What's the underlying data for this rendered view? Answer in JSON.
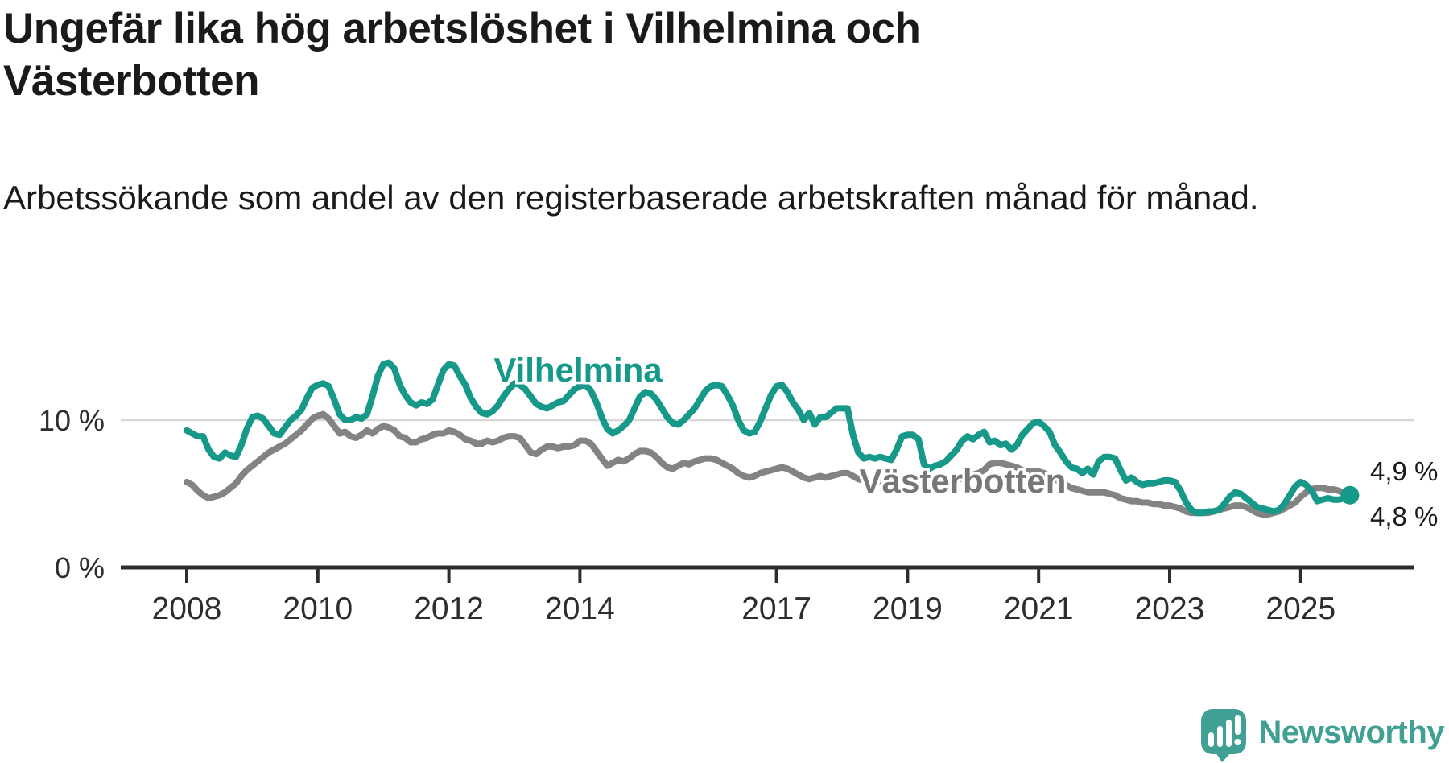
{
  "header": {
    "title": "Ungefär lika hög arbetslöshet i Vilhelmina och Västerbotten",
    "subtitle": "Arbetssökande som andel av den registerbaserade arbetskraften månad för månad."
  },
  "colors": {
    "vilhelmina_teal": "#17998a",
    "vasterbotten_gray": "#838383",
    "axis": "#2d2d2d",
    "gridline": "#d8d8d8",
    "text": "#1a1a1a",
    "logo_teal": "#3fa093"
  },
  "branding": {
    "logo_text": "Newsworthy",
    "logo_icon": "newsworthy-speech-bubble-chart-icon"
  },
  "chart_data": {
    "type": "line",
    "unit": "%",
    "frequency": "monthly",
    "start": "2008-01",
    "end": "2025-10",
    "grid": "single horizontal gridline at 10 %",
    "legend_position": "inline-labels-on-lines",
    "x_axis": {
      "tick_years": [
        2008,
        2010,
        2012,
        2014,
        2017,
        2019,
        2021,
        2023,
        2025
      ]
    },
    "y_axis": {
      "ticks": [
        {
          "value": 0,
          "label": "0 %"
        },
        {
          "value": 10,
          "label": "10 %"
        }
      ],
      "gridline_values": [
        10
      ],
      "ylim": [
        0,
        14.5
      ]
    },
    "series": [
      {
        "name": "Vilhelmina",
        "color": "#17998a",
        "end_label": "4,9 %",
        "values": [
          9.3,
          9.1,
          8.9,
          8.9,
          8.0,
          7.5,
          7.4,
          7.8,
          7.6,
          7.5,
          8.3,
          9.4,
          10.2,
          10.3,
          10.1,
          9.6,
          9.1,
          9.0,
          9.5,
          10.0,
          10.3,
          10.7,
          11.5,
          12.2,
          12.4,
          12.5,
          12.3,
          11.4,
          10.4,
          10.0,
          10.0,
          10.2,
          10.1,
          10.4,
          11.6,
          13.0,
          13.8,
          13.9,
          13.5,
          12.4,
          11.7,
          11.2,
          11.0,
          11.2,
          11.1,
          11.4,
          12.4,
          13.4,
          13.8,
          13.7,
          13.0,
          12.4,
          11.5,
          10.9,
          10.5,
          10.4,
          10.6,
          11.0,
          11.6,
          12.1,
          12.5,
          12.4,
          12.1,
          11.6,
          11.1,
          10.9,
          10.8,
          11.0,
          11.2,
          11.3,
          11.7,
          12.1,
          12.3,
          12.4,
          12.0,
          11.2,
          10.2,
          9.4,
          9.1,
          9.3,
          9.6,
          10.0,
          10.8,
          11.6,
          11.9,
          11.8,
          11.4,
          10.8,
          10.2,
          9.8,
          9.7,
          10.0,
          10.4,
          10.8,
          11.4,
          12.0,
          12.3,
          12.4,
          12.3,
          11.7,
          11.0,
          10.0,
          9.3,
          9.1,
          9.2,
          9.9,
          10.8,
          11.7,
          12.3,
          12.4,
          11.9,
          11.2,
          10.7,
          10.0,
          10.5,
          9.7,
          10.2,
          10.2,
          10.5,
          10.8,
          10.8,
          10.8,
          9.0,
          7.8,
          7.4,
          7.5,
          7.4,
          7.5,
          7.4,
          7.3,
          8.0,
          8.9,
          9.0,
          9.0,
          8.7,
          7.0,
          6.7,
          6.9,
          7.0,
          7.2,
          7.6,
          8.0,
          8.6,
          8.9,
          8.7,
          9.0,
          9.2,
          8.5,
          8.6,
          8.3,
          8.4,
          8.0,
          8.3,
          9.0,
          9.4,
          9.8,
          9.9,
          9.6,
          9.2,
          8.3,
          7.8,
          7.2,
          6.8,
          6.7,
          6.4,
          6.7,
          6.3,
          7.2,
          7.5,
          7.5,
          7.4,
          6.6,
          5.9,
          6.1,
          5.8,
          5.6,
          5.7,
          5.7,
          5.8,
          5.9,
          5.9,
          5.8,
          5.2,
          4.4,
          3.9,
          3.7,
          3.7,
          3.8,
          3.8,
          3.9,
          4.3,
          4.8,
          5.1,
          5.0,
          4.7,
          4.4,
          4.1,
          4.0,
          3.9,
          3.8,
          3.9,
          4.3,
          4.9,
          5.5,
          5.8,
          5.6,
          5.2,
          4.5,
          4.6,
          4.7,
          4.6,
          4.6,
          4.7,
          4.9
        ]
      },
      {
        "name": "Västerbotten",
        "color": "#838383",
        "label_color": "#777777",
        "end_label": "4,8 %",
        "values": [
          5.8,
          5.6,
          5.2,
          4.9,
          4.7,
          4.8,
          4.9,
          5.1,
          5.4,
          5.7,
          6.2,
          6.6,
          6.9,
          7.2,
          7.5,
          7.8,
          8.0,
          8.2,
          8.4,
          8.7,
          9.0,
          9.3,
          9.7,
          10.1,
          10.3,
          10.4,
          10.1,
          9.6,
          9.1,
          9.2,
          8.9,
          8.8,
          9.0,
          9.3,
          9.1,
          9.4,
          9.6,
          9.5,
          9.3,
          8.9,
          8.8,
          8.5,
          8.5,
          8.7,
          8.8,
          9.0,
          9.1,
          9.1,
          9.3,
          9.2,
          9.0,
          8.7,
          8.6,
          8.4,
          8.4,
          8.6,
          8.5,
          8.6,
          8.8,
          8.9,
          8.9,
          8.8,
          8.3,
          7.8,
          7.7,
          8.0,
          8.2,
          8.2,
          8.1,
          8.2,
          8.2,
          8.3,
          8.6,
          8.6,
          8.4,
          7.9,
          7.4,
          6.9,
          7.1,
          7.3,
          7.2,
          7.4,
          7.7,
          7.9,
          7.9,
          7.8,
          7.5,
          7.1,
          6.8,
          6.7,
          6.9,
          7.1,
          7.0,
          7.2,
          7.3,
          7.4,
          7.4,
          7.3,
          7.1,
          6.9,
          6.7,
          6.4,
          6.2,
          6.1,
          6.2,
          6.4,
          6.5,
          6.6,
          6.7,
          6.8,
          6.7,
          6.5,
          6.3,
          6.1,
          6.0,
          6.1,
          6.2,
          6.1,
          6.2,
          6.3,
          6.4,
          6.4,
          6.2,
          6.0,
          5.9,
          5.8,
          5.8,
          5.9,
          5.9,
          5.8,
          5.9,
          6.0,
          6.1,
          6.1,
          6.0,
          5.8,
          5.7,
          5.8,
          5.9,
          5.9,
          5.8,
          5.9,
          6.1,
          6.2,
          6.3,
          6.4,
          6.6,
          7.0,
          7.1,
          7.1,
          7.0,
          6.9,
          6.8,
          6.6,
          6.5,
          6.5,
          6.5,
          6.4,
          6.2,
          6.0,
          5.8,
          5.6,
          5.4,
          5.3,
          5.2,
          5.1,
          5.1,
          5.1,
          5.1,
          5.0,
          4.9,
          4.7,
          4.6,
          4.5,
          4.5,
          4.4,
          4.4,
          4.3,
          4.3,
          4.2,
          4.2,
          4.1,
          4.0,
          3.8,
          3.7,
          3.7,
          3.7,
          3.7,
          3.8,
          3.9,
          4.0,
          4.1,
          4.2,
          4.2,
          4.1,
          3.9,
          3.7,
          3.6,
          3.6,
          3.7,
          3.8,
          4.0,
          4.2,
          4.4,
          4.8,
          5.1,
          5.3,
          5.4,
          5.4,
          5.3,
          5.3,
          5.2,
          5.0,
          4.8
        ]
      }
    ]
  }
}
